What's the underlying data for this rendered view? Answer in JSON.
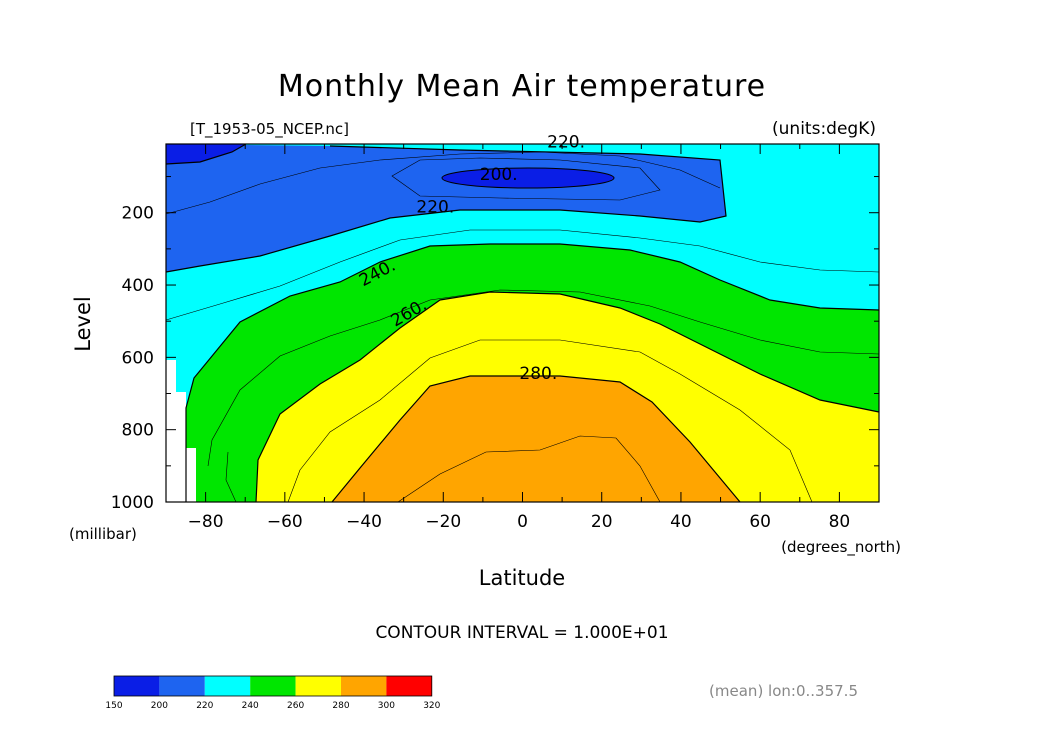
{
  "chart_data": {
    "type": "heatmap",
    "title": "Monthly Mean Air temperature",
    "file": "[T_1953-05_NCEP.nc]",
    "units": "(units:degK)",
    "xlabel": "Latitude",
    "x_units": "(degrees_north)",
    "ylabel": "Level",
    "y_units": "(millibar)",
    "xlim": [
      -90,
      90
    ],
    "ylim": [
      1000,
      10
    ],
    "x_ticks": [
      "-80",
      "-60",
      "-40",
      "-20",
      "0",
      "20",
      "40",
      "60",
      "80"
    ],
    "x_tick_values": [
      -80,
      -60,
      -40,
      -20,
      0,
      20,
      40,
      60,
      80
    ],
    "y_ticks": [
      "200",
      "400",
      "600",
      "800",
      "1000"
    ],
    "y_tick_values": [
      200,
      400,
      600,
      800,
      1000
    ],
    "contour_interval": "CONTOUR INTERVAL = 1.000E+01",
    "contour_labels": [
      {
        "text": "200.",
        "lat": -6,
        "lev": 110
      },
      {
        "text": "220.",
        "lat": 11,
        "lev": 20
      },
      {
        "text": "220.",
        "lat": -22,
        "lev": 200
      },
      {
        "text": "240.",
        "lat": -36,
        "lev": 380
      },
      {
        "text": "260.",
        "lat": -28,
        "lev": 490
      },
      {
        "text": "280.",
        "lat": 4,
        "lev": 660
      }
    ],
    "color_levels": [
      {
        "from": 150,
        "to": 200,
        "color": "#0a1ee6"
      },
      {
        "from": 200,
        "to": 220,
        "color": "#1e64f0"
      },
      {
        "from": 220,
        "to": 240,
        "color": "#00ffff"
      },
      {
        "from": 240,
        "to": 260,
        "color": "#00e600"
      },
      {
        "from": 260,
        "to": 280,
        "color": "#ffff00"
      },
      {
        "from": 280,
        "to": 300,
        "color": "#ffa500"
      },
      {
        "from": 300,
        "to": 320,
        "color": "#ff0000"
      }
    ],
    "colorbar_labels": [
      "150",
      "200",
      "220",
      "240",
      "260",
      "280",
      "300",
      "320"
    ],
    "footnote": "(mean) lon:0..357.5"
  }
}
